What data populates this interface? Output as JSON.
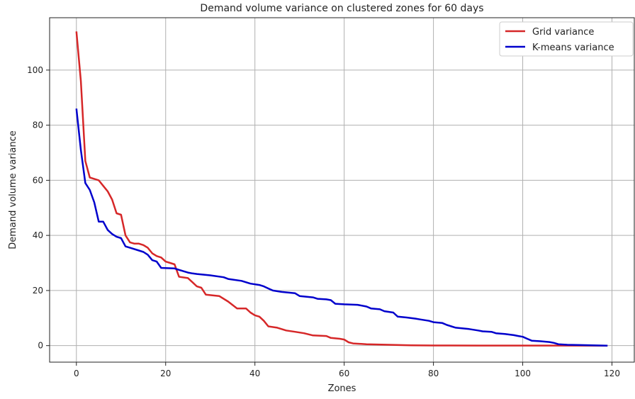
{
  "chart_data": {
    "type": "line",
    "title": "Demand volume variance on clustered zones for 60 days",
    "xlabel": "Zones",
    "ylabel": "Demand volume variance",
    "xlim": [
      -6,
      125
    ],
    "ylim": [
      -6,
      119
    ],
    "xticks": [
      0,
      20,
      40,
      60,
      80,
      100,
      120
    ],
    "yticks": [
      0,
      20,
      40,
      60,
      80,
      100
    ],
    "grid": true,
    "legend_position": "top-right",
    "series": [
      {
        "name": "Grid variance",
        "color": "#d62728",
        "points": [
          [
            0,
            114
          ],
          [
            1,
            96
          ],
          [
            2,
            67
          ],
          [
            3,
            61
          ],
          [
            4,
            60.5
          ],
          [
            5,
            60
          ],
          [
            6,
            58
          ],
          [
            7,
            56
          ],
          [
            8,
            53
          ],
          [
            9,
            48
          ],
          [
            10,
            47.5
          ],
          [
            11,
            40
          ],
          [
            12,
            37.5
          ],
          [
            13,
            37
          ],
          [
            14,
            37
          ],
          [
            15,
            36.5
          ],
          [
            16,
            35.5
          ],
          [
            17,
            33.5
          ],
          [
            18,
            32.5
          ],
          [
            19,
            32
          ],
          [
            20,
            30.5
          ],
          [
            21,
            30
          ],
          [
            22,
            29.5
          ],
          [
            23,
            25
          ],
          [
            25,
            24.5
          ],
          [
            26,
            23
          ],
          [
            27,
            21.5
          ],
          [
            28,
            21
          ],
          [
            29,
            18.5
          ],
          [
            32,
            18
          ],
          [
            34,
            16
          ],
          [
            36,
            13.5
          ],
          [
            38,
            13.5
          ],
          [
            39,
            12
          ],
          [
            40,
            11
          ],
          [
            41,
            10.5
          ],
          [
            42,
            9
          ],
          [
            43,
            7
          ],
          [
            45,
            6.5
          ],
          [
            47,
            5.5
          ],
          [
            49,
            5
          ],
          [
            51,
            4.5
          ],
          [
            53,
            3.7
          ],
          [
            56,
            3.5
          ],
          [
            57,
            2.8
          ],
          [
            59,
            2.5
          ],
          [
            60,
            2.2
          ],
          [
            61,
            1.2
          ],
          [
            62,
            0.8
          ],
          [
            65,
            0.5
          ],
          [
            70,
            0.3
          ],
          [
            75,
            0.1
          ],
          [
            80,
            0.05
          ],
          [
            90,
            0.02
          ],
          [
            100,
            0.02
          ],
          [
            110,
            0.01
          ],
          [
            119,
            0
          ]
        ]
      },
      {
        "name": "K-means variance",
        "color": "#0000cc",
        "points": [
          [
            0,
            86
          ],
          [
            1,
            71
          ],
          [
            2,
            59
          ],
          [
            3,
            56.5
          ],
          [
            4,
            52
          ],
          [
            5,
            45
          ],
          [
            6,
            45
          ],
          [
            7,
            42
          ],
          [
            8,
            40.5
          ],
          [
            9,
            39.5
          ],
          [
            10,
            39
          ],
          [
            11,
            36
          ],
          [
            12,
            35.5
          ],
          [
            14,
            34.5
          ],
          [
            15,
            34
          ],
          [
            16,
            33
          ],
          [
            17,
            31
          ],
          [
            18,
            30.5
          ],
          [
            19,
            28.2
          ],
          [
            22,
            28
          ],
          [
            23,
            27.5
          ],
          [
            24,
            27
          ],
          [
            25,
            26.5
          ],
          [
            26,
            26.2
          ],
          [
            27,
            26
          ],
          [
            30,
            25.5
          ],
          [
            33,
            24.8
          ],
          [
            34,
            24.2
          ],
          [
            37,
            23.5
          ],
          [
            39,
            22.5
          ],
          [
            41,
            22
          ],
          [
            42,
            21.5
          ],
          [
            44,
            20
          ],
          [
            46,
            19.5
          ],
          [
            49,
            19
          ],
          [
            50,
            18
          ],
          [
            53,
            17.5
          ],
          [
            54,
            17
          ],
          [
            56,
            16.8
          ],
          [
            57,
            16.5
          ],
          [
            58,
            15.2
          ],
          [
            60,
            15
          ],
          [
            63,
            14.8
          ],
          [
            65,
            14.2
          ],
          [
            66,
            13.5
          ],
          [
            68,
            13.2
          ],
          [
            69,
            12.5
          ],
          [
            71,
            12
          ],
          [
            72,
            10.5
          ],
          [
            74,
            10.2
          ],
          [
            76,
            9.8
          ],
          [
            77,
            9.5
          ],
          [
            79,
            9
          ],
          [
            80,
            8.5
          ],
          [
            82,
            8.2
          ],
          [
            83,
            7.5
          ],
          [
            84,
            7
          ],
          [
            85,
            6.5
          ],
          [
            87,
            6.2
          ],
          [
            88,
            6
          ],
          [
            90,
            5.5
          ],
          [
            91,
            5.2
          ],
          [
            93,
            5
          ],
          [
            94,
            4.5
          ],
          [
            96,
            4.2
          ],
          [
            98,
            3.8
          ],
          [
            99,
            3.5
          ],
          [
            100,
            3.2
          ],
          [
            101,
            2.5
          ],
          [
            102,
            1.8
          ],
          [
            104,
            1.6
          ],
          [
            106,
            1.3
          ],
          [
            107,
            1
          ],
          [
            108,
            0.5
          ],
          [
            110,
            0.3
          ],
          [
            113,
            0.2
          ],
          [
            119,
            0
          ]
        ]
      }
    ]
  }
}
